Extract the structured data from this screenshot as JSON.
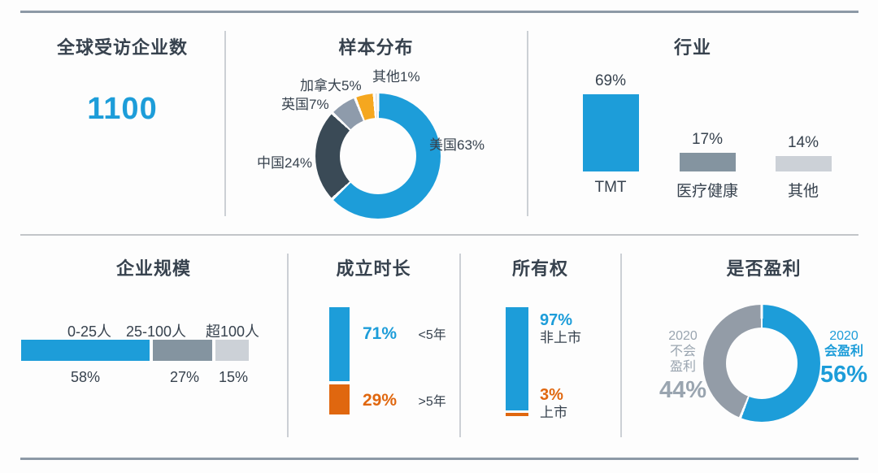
{
  "kpi": {
    "title": "全球受访企业数",
    "value": "1100"
  },
  "theme": {
    "blue": "#1d9dd9",
    "orange": "#e0670f",
    "dark": "#37424e",
    "gray": "#8494a0",
    "light_gray": "#ccd1d7"
  },
  "chart_data": [
    {
      "type": "pie",
      "title": "样本分布",
      "legend_position": "around",
      "slices": [
        {
          "label": "美国",
          "value": 63,
          "display": "美国63%",
          "color": "#1d9dd9"
        },
        {
          "label": "中国",
          "value": 24,
          "display": "中国24%",
          "color": "#3a4a56"
        },
        {
          "label": "英国",
          "value": 7,
          "display": "英国7%",
          "color": "#8e9bab"
        },
        {
          "label": "加拿大",
          "value": 5,
          "display": "加拿大5%",
          "color": "#f5a71f"
        },
        {
          "label": "其他",
          "value": 1,
          "display": "其他1%",
          "color": "#dcdfe3"
        }
      ]
    },
    {
      "type": "bar",
      "title": "行业",
      "categories": [
        "TMT",
        "医疗健康",
        "其他"
      ],
      "values": [
        69,
        17,
        14
      ],
      "value_labels": [
        "69%",
        "17%",
        "14%"
      ],
      "colors": [
        "#1d9dd9",
        "#8494a0",
        "#ccd1d7"
      ],
      "ylim": [
        0,
        100
      ]
    },
    {
      "type": "bar",
      "title": "企业规模",
      "orientation": "horizontal-stacked",
      "categories": [
        "0-25人",
        "25-100人",
        "超100人"
      ],
      "values": [
        58,
        27,
        15
      ],
      "value_labels": [
        "58%",
        "27%",
        "15%"
      ],
      "colors": [
        "#1d9dd9",
        "#8494a0",
        "#ccd1d7"
      ]
    },
    {
      "type": "bar",
      "title": "成立时长",
      "orientation": "vertical-stacked",
      "segments": [
        {
          "label": "<5年",
          "value": 71,
          "pct": "71%",
          "color": "#1d9dd9"
        },
        {
          "label": ">5年",
          "value": 29,
          "pct": "29%",
          "color": "#e0670f"
        }
      ]
    },
    {
      "type": "bar",
      "title": "所有权",
      "orientation": "vertical-stacked",
      "segments": [
        {
          "label": "非上市",
          "value": 97,
          "pct": "97%",
          "color": "#1d9dd9"
        },
        {
          "label": "上市",
          "value": 3,
          "pct": "3%",
          "color": "#e0670f"
        }
      ]
    },
    {
      "type": "pie",
      "title": "是否盈利",
      "slices": [
        {
          "label": "2020 会盈利",
          "value": 56,
          "display": "56%",
          "color": "#1d9dd9"
        },
        {
          "label": "2020 不会盈利",
          "value": 44,
          "display": "44%",
          "color": "#939ca7"
        }
      ],
      "right_label": {
        "line1": "2020",
        "line2": "会盈利",
        "pct": "56%",
        "color": "#1d9dd9"
      },
      "left_label": {
        "line1": "2020",
        "line2": "不会",
        "line3": "盈利",
        "pct": "44%",
        "color": "#9aa5b0"
      }
    }
  ]
}
